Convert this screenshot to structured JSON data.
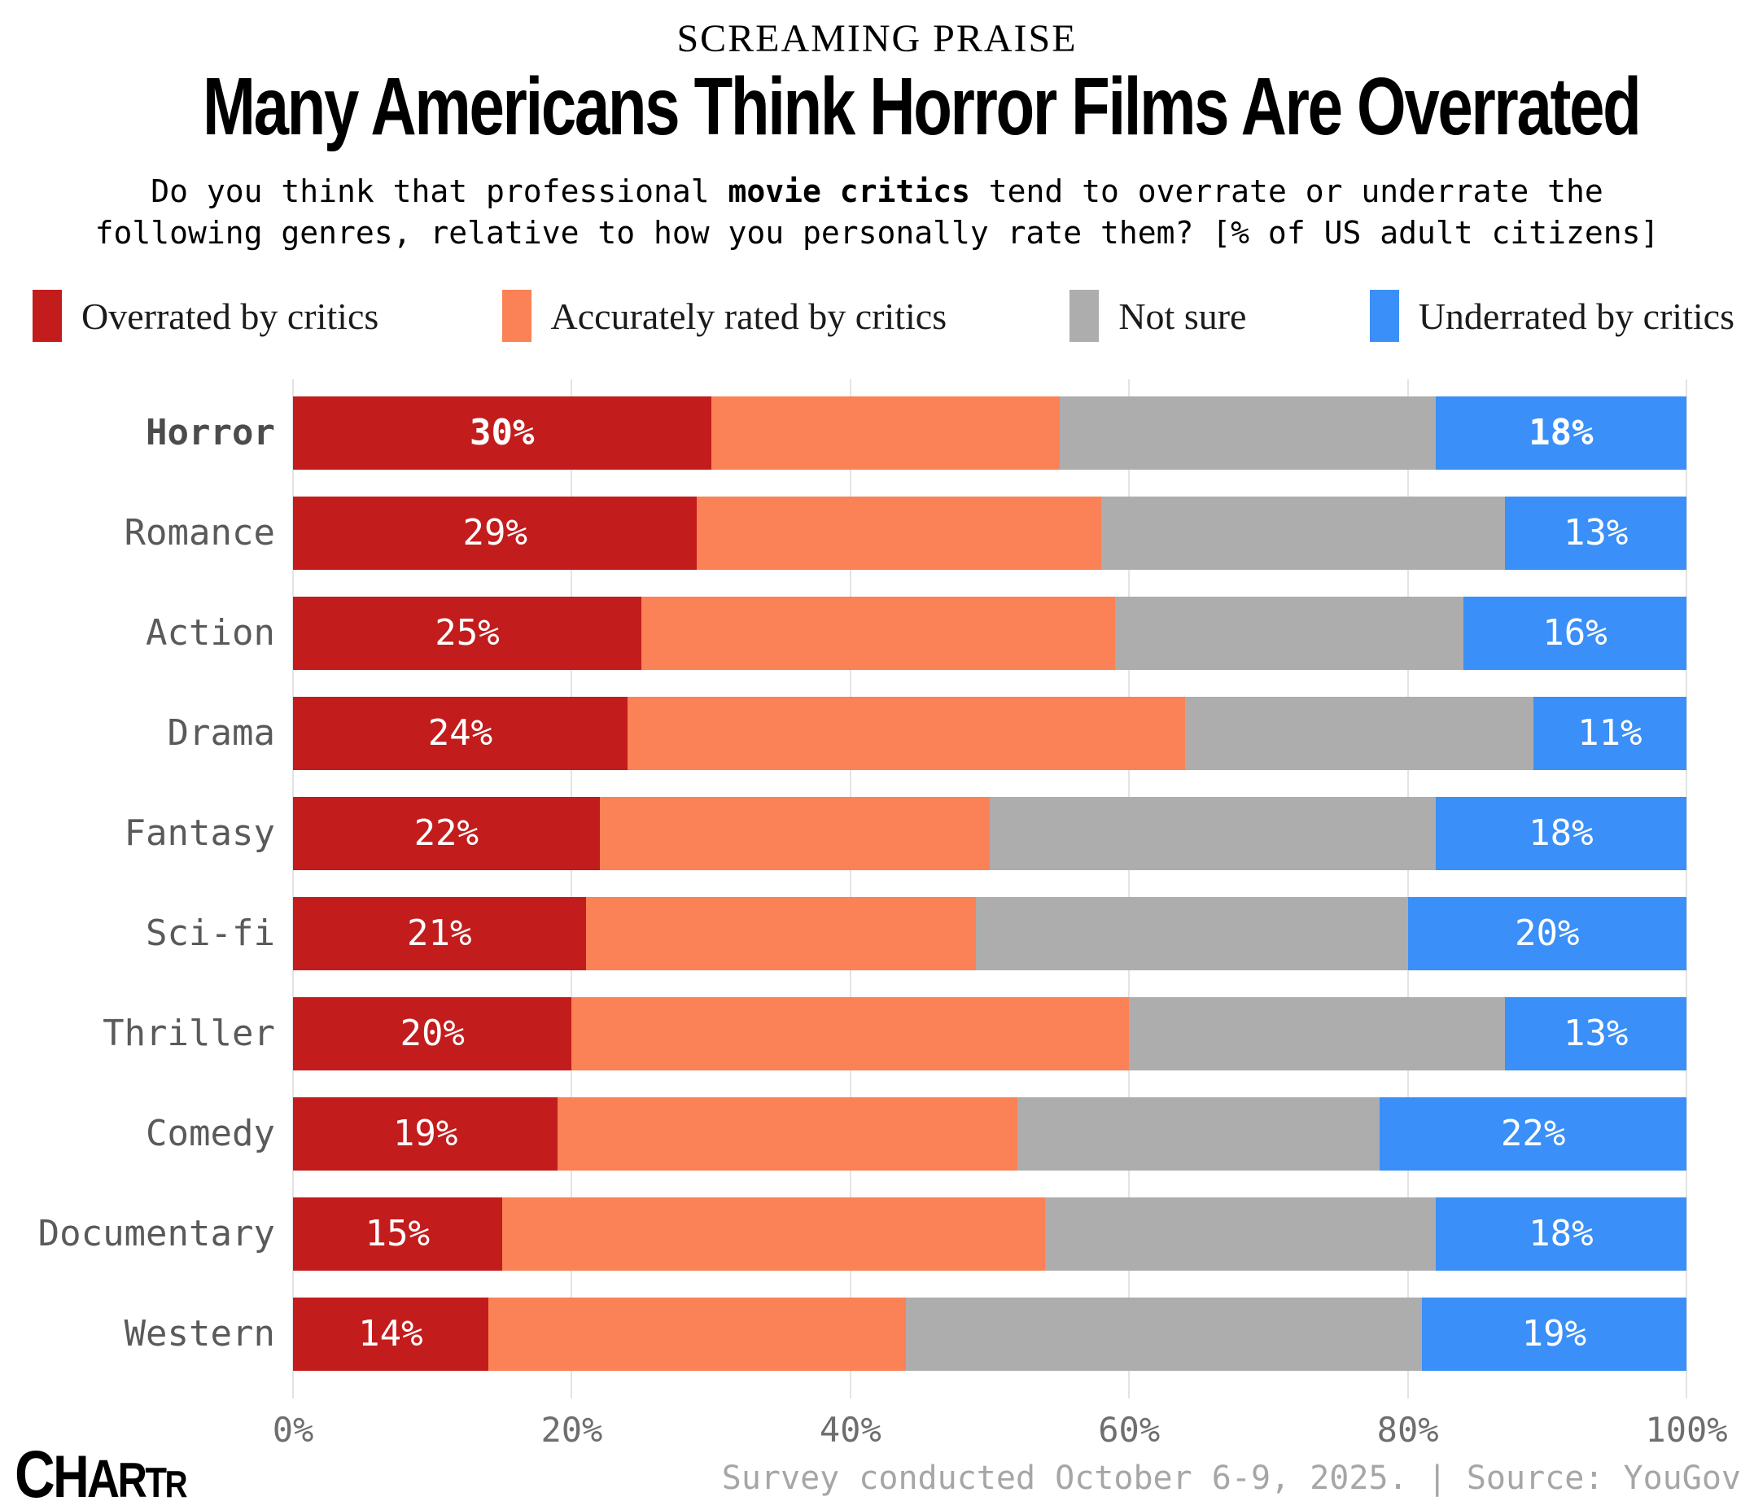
{
  "header": {
    "kicker": "SCREAMING PRAISE",
    "title": "Many Americans Think Horror Films Are Overrated",
    "subtitle": {
      "line1_pre": "Do you think that professional ",
      "line1_bold": "movie critics",
      "line1_post": " tend to overrate or underrate the",
      "line2": "following genres, relative to how you personally rate them? [% of US adult citizens]"
    }
  },
  "chart_data": {
    "type": "stacked_bar_horizontal",
    "title": "Many Americans Think Horror Films Are Overrated",
    "categories": [
      "Horror",
      "Romance",
      "Action",
      "Drama",
      "Fantasy",
      "Sci-fi",
      "Thriller",
      "Comedy",
      "Documentary",
      "Western"
    ],
    "emphasized_category": "Horror",
    "series": [
      {
        "name": "Overrated by critics",
        "color": "#c31c1c",
        "labeled": true,
        "values": [
          30,
          29,
          25,
          24,
          22,
          21,
          20,
          19,
          15,
          14
        ]
      },
      {
        "name": "Accurately rated by critics",
        "color": "#fb8157",
        "labeled": false,
        "values": [
          25,
          29,
          34,
          40,
          28,
          28,
          40,
          33,
          39,
          30
        ]
      },
      {
        "name": "Not sure",
        "color": "#aeadad",
        "labeled": false,
        "values": [
          27,
          29,
          25,
          25,
          32,
          31,
          27,
          26,
          28,
          37
        ]
      },
      {
        "name": "Underrated by critics",
        "color": "#3a8ff8",
        "labeled": true,
        "values": [
          18,
          13,
          16,
          11,
          18,
          20,
          13,
          22,
          18,
          19
        ]
      }
    ],
    "value_suffix": "%",
    "xlim": [
      0,
      100
    ],
    "x_ticks": [
      "0%",
      "20%",
      "40%",
      "60%",
      "80%",
      "100%"
    ],
    "grid": "vertical",
    "legend_position": "top"
  },
  "footer": {
    "source": "Survey conducted October 6-9, 2025. | Source: YouGov",
    "logo_text": "CHARTR",
    "logo_letter_sizes": [
      82,
      73,
      66,
      60,
      52,
      46
    ]
  }
}
